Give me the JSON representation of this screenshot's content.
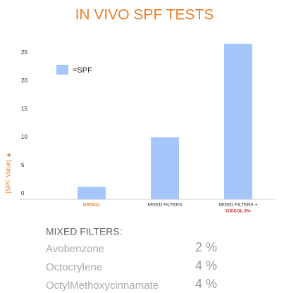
{
  "chart_data": {
    "type": "bar",
    "title": "IN VIVO SPF TESTS",
    "y_label": "[SPF Value] ▲",
    "categories": [
      [
        "OXISOL"
      ],
      [
        "MIXED FILTERS"
      ],
      [
        "MIXED FILTERS +",
        "OXISOL 3%"
      ]
    ],
    "category_colors": [
      [
        "#e8812f"
      ],
      [
        "#222222"
      ],
      [
        "#222222",
        "#d0312d"
      ]
    ],
    "series": [
      {
        "name": "=SPF",
        "color": "#a4c6fb",
        "values": [
          2.2,
          11,
          27.6
        ]
      }
    ],
    "ylim": [
      0,
      28
    ],
    "yticks": [
      0,
      5,
      10,
      15,
      20,
      25
    ],
    "grid": false,
    "legend": "top-left"
  },
  "filters": {
    "heading": "MIXED FILTERS:",
    "items": [
      {
        "name": "Avobenzone",
        "amount": "2 %"
      },
      {
        "name": "Octocrylene",
        "amount": "4 %"
      },
      {
        "name": "OctylMethoxycinnamate",
        "amount": "4 %"
      }
    ]
  }
}
